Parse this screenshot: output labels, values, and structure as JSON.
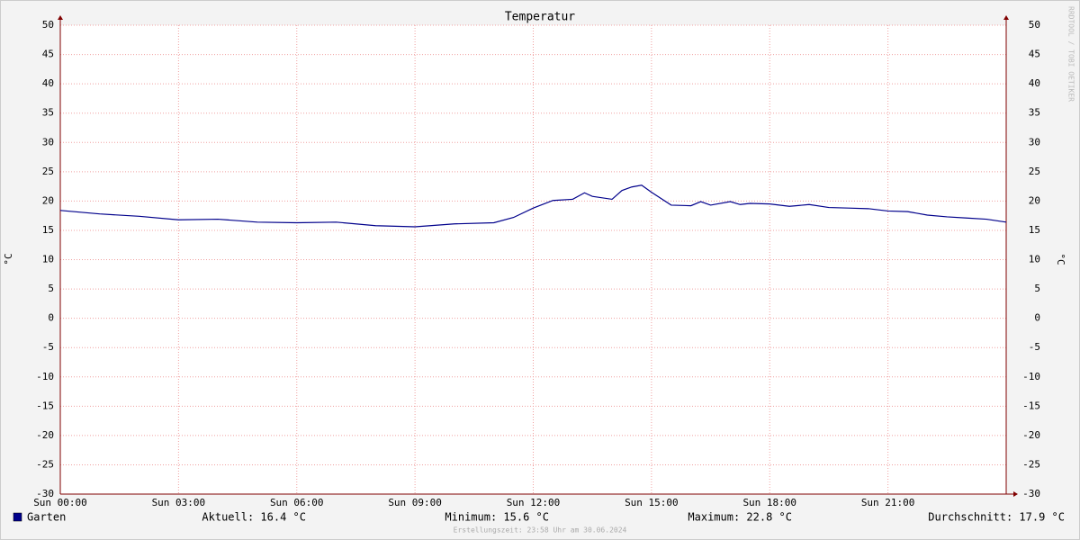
{
  "chart_data": {
    "type": "line",
    "title": "Temperatur",
    "y_label": "°C",
    "x": [
      0,
      1,
      2,
      3,
      4,
      5,
      6,
      7,
      8,
      9,
      10,
      11,
      11.5,
      12,
      12.5,
      13,
      13.3,
      13.5,
      14,
      14.25,
      14.5,
      14.75,
      15,
      15.5,
      16,
      16.25,
      16.5,
      17,
      17.25,
      17.5,
      18,
      18.5,
      19,
      19.5,
      20,
      20.5,
      21,
      21.5,
      22,
      22.5,
      23,
      23.5,
      24
    ],
    "series": [
      {
        "name": "Garten",
        "color": "#00008b",
        "values": [
          18.4,
          17.8,
          17.4,
          16.8,
          16.9,
          16.4,
          16.3,
          16.4,
          15.8,
          15.6,
          16.1,
          16.3,
          17.2,
          18.8,
          20.1,
          20.3,
          21.4,
          20.8,
          20.3,
          21.8,
          22.4,
          22.7,
          21.5,
          19.3,
          19.2,
          19.9,
          19.3,
          19.9,
          19.4,
          19.6,
          19.5,
          19.1,
          19.4,
          18.9,
          18.8,
          18.7,
          18.3,
          18.2,
          17.6,
          17.3,
          17.1,
          16.9,
          16.4
        ]
      }
    ],
    "xlim": [
      0,
      24
    ],
    "xticks": [
      {
        "value": 0,
        "label": "Sun 00:00"
      },
      {
        "value": 3,
        "label": "Sun 03:00"
      },
      {
        "value": 6,
        "label": "Sun 06:00"
      },
      {
        "value": 9,
        "label": "Sun 09:00"
      },
      {
        "value": 12,
        "label": "Sun 12:00"
      },
      {
        "value": 15,
        "label": "Sun 15:00"
      },
      {
        "value": 18,
        "label": "Sun 18:00"
      },
      {
        "value": 21,
        "label": "Sun 21:00"
      }
    ],
    "ylim": [
      -30,
      50
    ],
    "yticks": [
      -30,
      -25,
      -20,
      -15,
      -10,
      -5,
      0,
      5,
      10,
      15,
      20,
      25,
      30,
      35,
      40,
      45,
      50
    ],
    "grid": true,
    "stats": [
      "Aktuell: 16.4 °C",
      "Minimum: 15.6 °C",
      "Maximum: 22.8 °C",
      "Durchschnitt: 17.9 °C"
    ],
    "footnote": "Erstellungszeit: 23:58 Uhr am 30.06.2024",
    "watermark": "RRDTOOL / TOBI OETIKER"
  }
}
